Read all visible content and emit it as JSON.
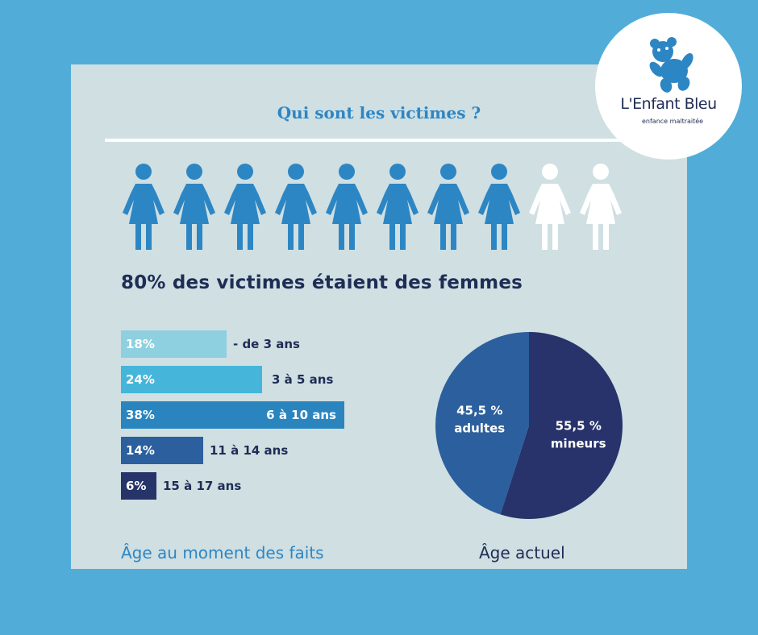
{
  "title": "Qui sont les victimes ?",
  "headline": "80% des victimes étaient des femmes",
  "logo": {
    "name": "L'Enfant Bleu",
    "tagline": "enfance maltraitée",
    "icon": "teddy-bear-icon"
  },
  "colors": {
    "background": "#52acd8",
    "card": "#cfdfe2",
    "title": "#2d86c4",
    "navy": "#1f2d55",
    "figure_filled": "#2d86c4",
    "figure_empty": "#ffffff"
  },
  "figures": {
    "total": 10,
    "filled": 8,
    "icon": "woman-figure-icon"
  },
  "chart_data": [
    {
      "type": "bar",
      "orientation": "horizontal",
      "title": "Âge au moment des faits",
      "categories": [
        "- de 3 ans",
        "3 à 5 ans",
        "6 à 10 ans",
        "11 à 14 ans",
        "15 à 17 ans"
      ],
      "values": [
        18,
        24,
        38,
        14,
        6
      ],
      "value_labels": [
        "18%",
        "24%",
        "38%",
        "14%",
        "6%"
      ],
      "colors": [
        "#8ed0df",
        "#45b5d9",
        "#2a85bf",
        "#2b5f9e",
        "#26346a"
      ]
    },
    {
      "type": "pie",
      "title": "Âge actuel",
      "slices": [
        {
          "label": "mineurs",
          "value": 55.5,
          "value_label": "55,5 %",
          "color": "#27336a"
        },
        {
          "label": "adultes",
          "value": 45.5,
          "value_label": "45,5 %",
          "color": "#2c5f9d"
        }
      ]
    }
  ]
}
